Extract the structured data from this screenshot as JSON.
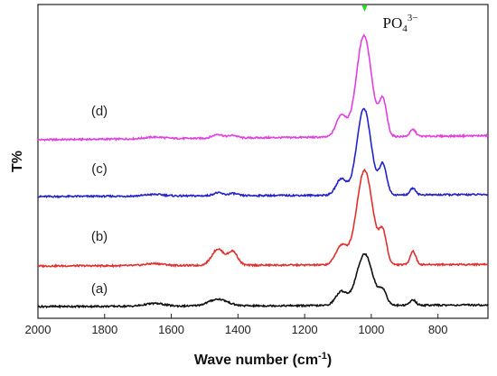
{
  "chart_data": {
    "type": "line",
    "xlabel": "Wave number (cm",
    "xlabel_sup": "-1",
    "xlabel_close": ")",
    "ylabel": "T%",
    "xlim": [
      2000,
      650
    ],
    "x_reversed": true,
    "x_ticks": [
      "2000",
      "1800",
      "1600",
      "1400",
      "1200",
      "1000",
      "800"
    ],
    "y_ticks": false,
    "grid": false,
    "legend": "none",
    "annotation": {
      "base": "PO",
      "sub": "4",
      "sup": "3−",
      "x": 1020,
      "marker_color": "#22dd22"
    },
    "series": [
      {
        "label": "(d)",
        "color": "#e040e0",
        "baseline": 0.1,
        "peaks": [
          {
            "x": 1460,
            "h": 0.028,
            "w": 22
          },
          {
            "x": 1415,
            "h": 0.02,
            "w": 18
          },
          {
            "x": 1650,
            "h": 0.012,
            "w": 40
          },
          {
            "x": 1090,
            "h": 0.16,
            "w": 22
          },
          {
            "x": 1022,
            "h": 0.75,
            "w": 32
          },
          {
            "x": 965,
            "h": 0.26,
            "w": 16
          },
          {
            "x": 875,
            "h": 0.05,
            "w": 12
          }
        ]
      },
      {
        "label": "(c)",
        "color": "#2222cc",
        "baseline": 0.05,
        "peaks": [
          {
            "x": 1460,
            "h": 0.022,
            "w": 20
          },
          {
            "x": 1415,
            "h": 0.017,
            "w": 18
          },
          {
            "x": 1650,
            "h": 0.012,
            "w": 40
          },
          {
            "x": 1090,
            "h": 0.12,
            "w": 22
          },
          {
            "x": 1022,
            "h": 0.64,
            "w": 30
          },
          {
            "x": 965,
            "h": 0.22,
            "w": 16
          },
          {
            "x": 875,
            "h": 0.05,
            "w": 12
          }
        ]
      },
      {
        "label": "(b)",
        "color": "#e03030",
        "baseline": 0.04,
        "peaks": [
          {
            "x": 1460,
            "h": 0.12,
            "w": 26
          },
          {
            "x": 1415,
            "h": 0.1,
            "w": 20
          },
          {
            "x": 1650,
            "h": 0.015,
            "w": 40
          },
          {
            "x": 1090,
            "h": 0.14,
            "w": 24
          },
          {
            "x": 1020,
            "h": 0.7,
            "w": 34
          },
          {
            "x": 965,
            "h": 0.22,
            "w": 16
          },
          {
            "x": 875,
            "h": 0.1,
            "w": 12
          }
        ]
      },
      {
        "label": "(a)",
        "color": "#111111",
        "baseline": 0.04,
        "peaks": [
          {
            "x": 1460,
            "h": 0.05,
            "w": 40
          },
          {
            "x": 1650,
            "h": 0.02,
            "w": 40
          },
          {
            "x": 1090,
            "h": 0.1,
            "w": 24
          },
          {
            "x": 1020,
            "h": 0.38,
            "w": 34
          },
          {
            "x": 965,
            "h": 0.1,
            "w": 16
          },
          {
            "x": 875,
            "h": 0.04,
            "w": 12
          }
        ]
      }
    ]
  }
}
